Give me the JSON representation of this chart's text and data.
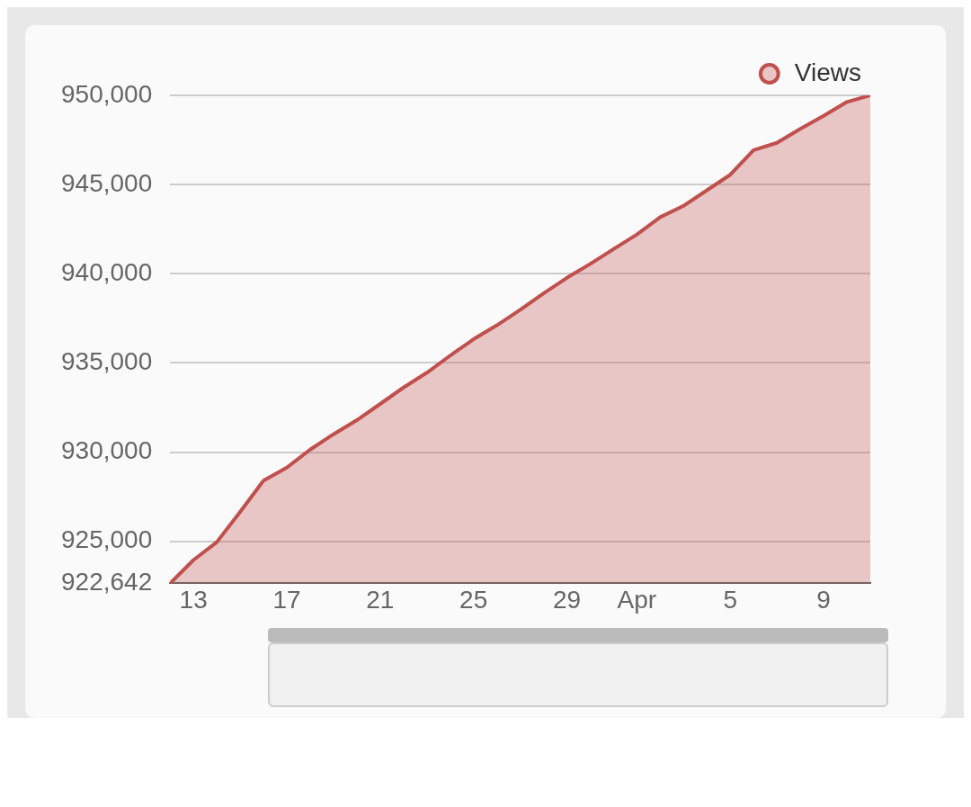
{
  "chart_data": {
    "type": "area",
    "x": [
      "--03-12",
      "--03-13",
      "--03-14",
      "--03-15",
      "--03-16",
      "--03-17",
      "--03-18",
      "--03-19",
      "--03-20",
      "--03-21",
      "--03-22",
      "--03-23",
      "--03-24",
      "--03-25",
      "--03-26",
      "--03-27",
      "--03-28",
      "--03-29",
      "--03-30",
      "--03-31",
      "--04-01",
      "--04-02",
      "--04-03",
      "--04-04",
      "--04-05",
      "--04-06",
      "--04-07",
      "--04-08",
      "--04-09",
      "--04-10",
      "--04-11"
    ],
    "series": [
      {
        "name": "Views",
        "color": "#c0504d",
        "values": [
          922642,
          923950,
          924950,
          926650,
          928400,
          929130,
          930140,
          931000,
          931790,
          932700,
          933620,
          934450,
          935410,
          936330,
          937110,
          937980,
          938900,
          939770,
          940550,
          941380,
          942200,
          943170,
          943810,
          944680,
          945550,
          946930,
          947340,
          948120,
          948850,
          949630,
          950000
        ]
      }
    ],
    "xlim": [
      "--03-12",
      "--04-11"
    ],
    "xticks": [
      {
        "value": "--03-13",
        "label": "13"
      },
      {
        "value": "--03-17",
        "label": "17"
      },
      {
        "value": "--03-21",
        "label": "21"
      },
      {
        "value": "--03-25",
        "label": "25"
      },
      {
        "value": "--03-29",
        "label": "29"
      },
      {
        "value": "--04-01",
        "label": "Apr"
      },
      {
        "value": "--04-05",
        "label": "5"
      },
      {
        "value": "--04-09",
        "label": "9"
      }
    ],
    "ylim": [
      922642,
      950000
    ],
    "yticks": [
      {
        "value": 922642,
        "label": "922,642"
      },
      {
        "value": 925000,
        "label": "925,000"
      },
      {
        "value": 930000,
        "label": "930,000"
      },
      {
        "value": 935000,
        "label": "935,000"
      },
      {
        "value": 940000,
        "label": "940,000"
      },
      {
        "value": 945000,
        "label": "945,000"
      },
      {
        "value": 950000,
        "label": "950,000"
      }
    ],
    "grid": "y",
    "legend": "top right",
    "marker": "none",
    "line_style": "solid"
  }
}
